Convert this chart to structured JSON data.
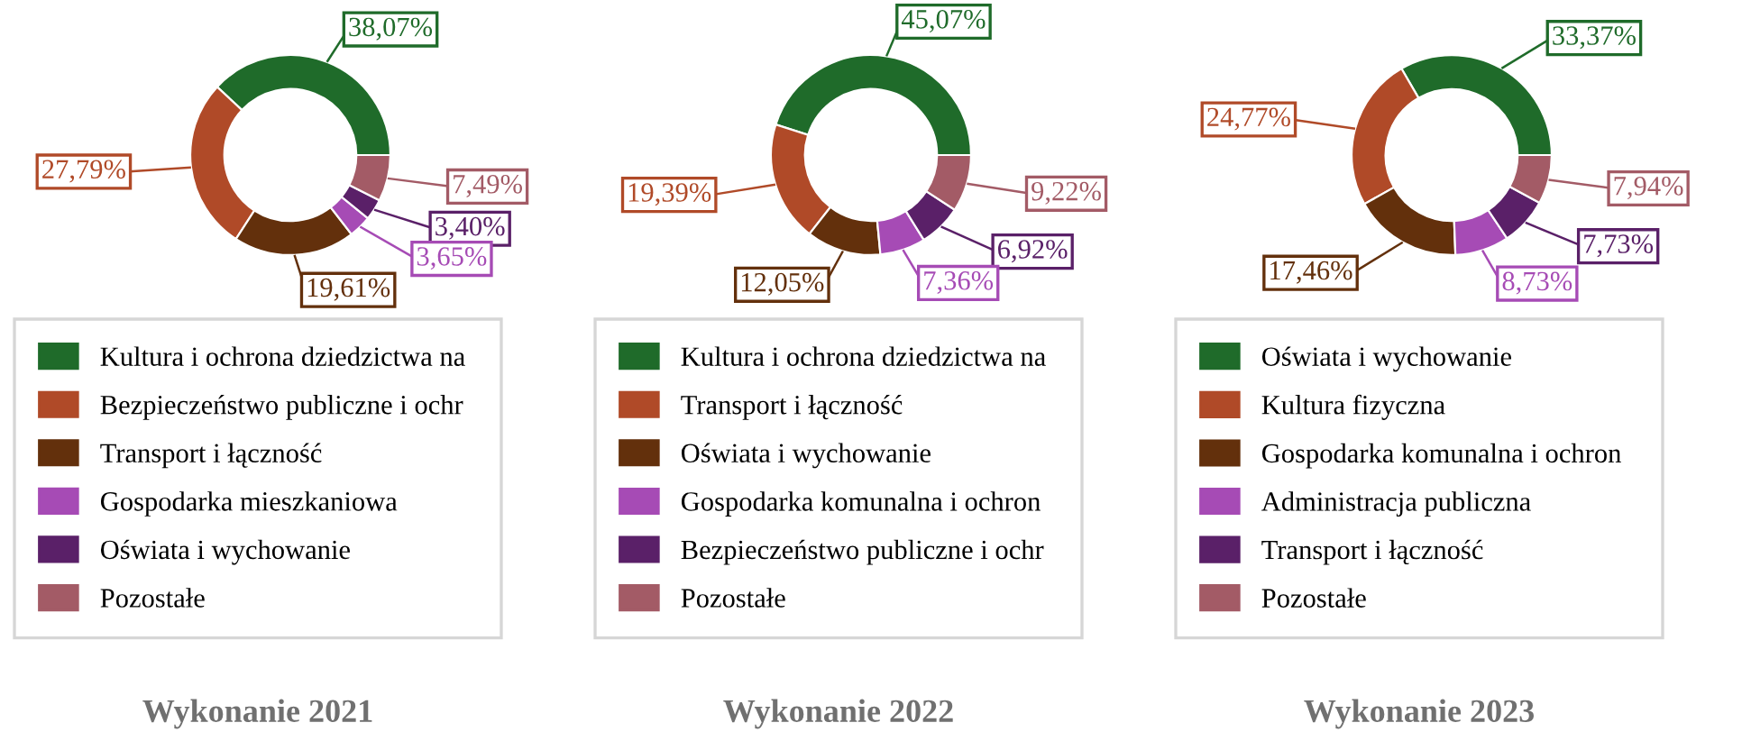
{
  "chart_data": [
    {
      "type": "donut",
      "title": "Wykonanie 2021",
      "legend": "bottom",
      "categories": [
        "Kultura i ochrona dziedzictwa na",
        "Bezpieczeństwo publiczne i ochr",
        "Transport i łączność",
        "Gospodarka mieszkaniowa",
        "Oświata i wychowanie",
        "Pozostałe"
      ],
      "values": [
        38.07,
        27.79,
        19.61,
        3.65,
        3.4,
        7.49
      ],
      "value_labels": [
        "38,07%",
        "27,79%",
        "19,61%",
        "3,65%",
        "3,40%",
        "7,49%"
      ],
      "colors": [
        "#1f6b2a",
        "#b04a28",
        "#63300c",
        "#a64bb5",
        "#5a2068",
        "#a35b66"
      ]
    },
    {
      "type": "donut",
      "title": "Wykonanie 2022",
      "legend": "bottom",
      "categories": [
        "Kultura i ochrona dziedzictwa na",
        "Transport i łączność",
        "Oświata i wychowanie",
        "Gospodarka komunalna i ochron",
        "Bezpieczeństwo publiczne i ochr",
        "Pozostałe"
      ],
      "values": [
        45.07,
        19.39,
        12.05,
        7.36,
        6.92,
        9.22
      ],
      "value_labels": [
        "45,07%",
        "19,39%",
        "12,05%",
        "7,36%",
        "6,92%",
        "9,22%"
      ],
      "colors": [
        "#1f6b2a",
        "#b04a28",
        "#63300c",
        "#a64bb5",
        "#5a2068",
        "#a35b66"
      ]
    },
    {
      "type": "donut",
      "title": "Wykonanie 2023",
      "legend": "bottom",
      "categories": [
        "Oświata i wychowanie",
        "Kultura fizyczna",
        "Gospodarka komunalna i ochron",
        "Administracja publiczna",
        "Transport i łączność",
        "Pozostałe"
      ],
      "values": [
        33.37,
        24.77,
        17.46,
        8.73,
        7.73,
        7.94
      ],
      "value_labels": [
        "33,37%",
        "24,77%",
        "17,46%",
        "8,73%",
        "7,73%",
        "7,94%"
      ],
      "colors": [
        "#1f6b2a",
        "#b04a28",
        "#63300c",
        "#a64bb5",
        "#5a2068",
        "#a35b66"
      ]
    }
  ]
}
